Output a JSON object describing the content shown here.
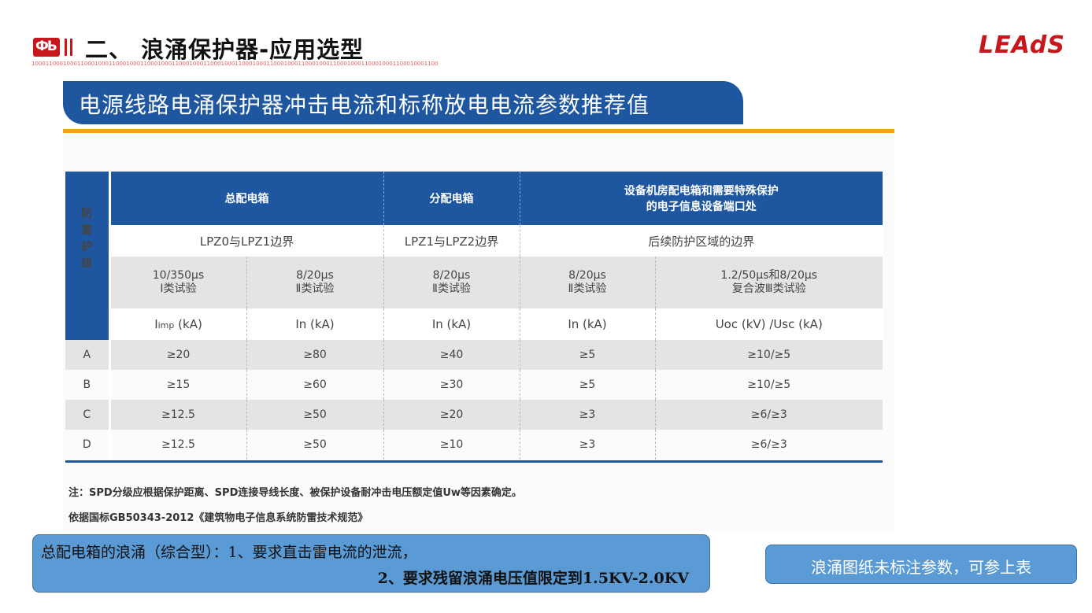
{
  "header": {
    "logo_glyph": "ФЬ",
    "title": "二、 浪涌保护器-应用选型",
    "binary_strip": "10001100010001100010001100010001100010001100010001100010001100010001100010001100010001100010001100010001100010001100",
    "brand": "LEAdS"
  },
  "banner": {
    "title": "电源线路电涌保护器冲击电流和标称放电电流参数推荐值"
  },
  "table": {
    "row_header": "防雷护级",
    "groups": [
      "总配电箱",
      "分配电箱",
      "设备机房配电箱和需要特殊保护的电子信息设备端口处"
    ],
    "group_line1": "设备机房配电箱和需要特殊保护",
    "group_line2": "的电子信息设备端口处",
    "zones": [
      "LPZ0与LPZ1边界",
      "LPZ1与LPZ2边界",
      "后续防护区域的边界"
    ],
    "tests": [
      {
        "wave": "10/350μs",
        "kind": "I类试验"
      },
      {
        "wave": "8/20μs",
        "kind": "Ⅱ类试验"
      },
      {
        "wave": "8/20μs",
        "kind": "Ⅱ类试验"
      },
      {
        "wave": "8/20μs",
        "kind": "Ⅱ类试验"
      },
      {
        "wave": "1.2/50μs和8/20μs",
        "kind": "复合波Ⅲ类试验"
      }
    ],
    "units": [
      "Iimp (kA)",
      "In (kA)",
      "In (kA)",
      "In (kA)",
      "Uoc (kV) /Usc (kA)"
    ],
    "unit_first_main": "I",
    "unit_first_sub": "imp",
    "unit_first_rest": " (kA)",
    "rows": [
      {
        "level": "A",
        "values": [
          "≥20",
          "≥80",
          "≥40",
          "≥5",
          "≥10/≥5"
        ]
      },
      {
        "level": "B",
        "values": [
          "≥15",
          "≥60",
          "≥30",
          "≥5",
          "≥10/≥5"
        ]
      },
      {
        "level": "C",
        "values": [
          "≥12.5",
          "≥50",
          "≥20",
          "≥3",
          "≥6/≥3"
        ]
      },
      {
        "level": "D",
        "values": [
          "≥12.5",
          "≥50",
          "≥10",
          "≥3",
          "≥6/≥3"
        ]
      }
    ]
  },
  "notes": {
    "note1": "注：SPD分级应根据保护距离、SPD连接导线长度、被保护设备耐冲击电压额定值Uw等因素确定。",
    "note2": "依据国标GB50343-2012《建筑物电子信息系统防雷技术规范》"
  },
  "callouts": {
    "left_line1": "总配电箱的浪涌（综合型）：1、要求直击雷电流的泄流，",
    "left_line2": "2、要求残留浪涌电压值限定到1.5KV-2.0KV",
    "right": "浪涌图纸未标注参数，可参上表"
  },
  "colors": {
    "blue": "#1e56a0",
    "orange": "#f5a01a",
    "red": "#c8161d",
    "callout": "#5b9bd5"
  }
}
